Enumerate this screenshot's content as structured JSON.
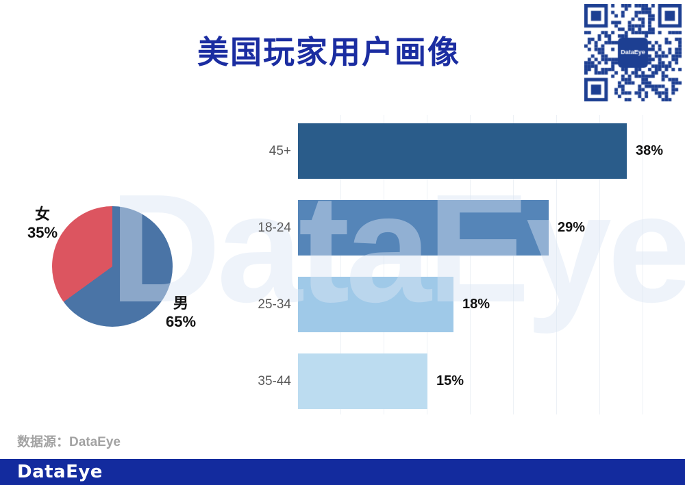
{
  "page": {
    "title": "美国玩家用户画像",
    "watermark": "DataEye",
    "source_note": "数据源：DataEye",
    "footer": {
      "logo": "DataEye",
      "bg_color": "#132b9e"
    },
    "qr": {
      "label": "DataEye",
      "color": "#1d3f92"
    }
  },
  "chart_data": [
    {
      "type": "pie",
      "slices": [
        {
          "label": "男",
          "value": 65,
          "display": "65%",
          "color": "#4a74a6"
        },
        {
          "label": "女",
          "value": 35,
          "display": "35%",
          "color": "#dc5560"
        }
      ],
      "start_angle_deg": 0,
      "direction": "clockwise",
      "legend_position": "outside"
    },
    {
      "type": "bar",
      "orientation": "horizontal",
      "categories": [
        "45+",
        "18-24",
        "25-34",
        "35-44"
      ],
      "values": [
        38,
        29,
        18,
        15
      ],
      "value_labels": [
        "38%",
        "29%",
        "18%",
        "15%"
      ],
      "bar_colors": [
        "#2a5c8a",
        "#5585b8",
        "#9fc9e8",
        "#bcdcf0"
      ],
      "xlim": [
        0,
        45
      ],
      "grid": true,
      "grid_step_pct": 5
    }
  ]
}
